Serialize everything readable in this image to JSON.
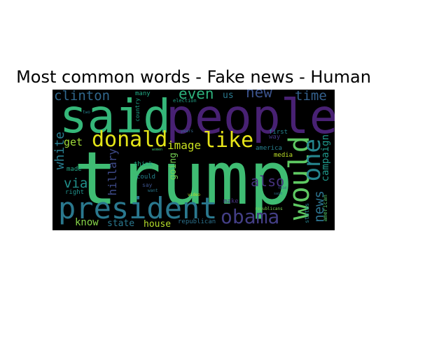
{
  "title": "Most common words - Fake news - Human",
  "words": [
    {
      "text": "trump",
      "color": "#3fbc73"
    },
    {
      "text": "said",
      "color": "#35b779"
    },
    {
      "text": "people",
      "color": "#482173"
    },
    {
      "text": "president",
      "color": "#2a788e"
    },
    {
      "text": "would",
      "color": "#5ec962"
    },
    {
      "text": "one",
      "color": "#25858e"
    },
    {
      "text": "donald",
      "color": "#e3e418"
    },
    {
      "text": "like",
      "color": "#e7e419"
    },
    {
      "text": "obama",
      "color": "#433e85"
    },
    {
      "text": "clinton",
      "color": "#31688e"
    },
    {
      "text": "even",
      "color": "#2db27d"
    },
    {
      "text": "new",
      "color": "#3b528b"
    },
    {
      "text": "time",
      "color": "#34618d"
    },
    {
      "text": "image",
      "color": "#c8e020"
    },
    {
      "text": "also",
      "color": "#46327e"
    },
    {
      "text": "news",
      "color": "#2c728e"
    },
    {
      "text": "white",
      "color": "#287c8e"
    },
    {
      "text": "via",
      "color": "#21918c"
    },
    {
      "text": "hillary",
      "color": "#3e4a89"
    },
    {
      "text": "campaign",
      "color": "#1f988b"
    },
    {
      "text": "get",
      "color": "#a0da39"
    },
    {
      "text": "going",
      "color": "#75d054"
    },
    {
      "text": "know",
      "color": "#86d549"
    },
    {
      "text": "state",
      "color": "#2a788e"
    },
    {
      "text": "house",
      "color": "#b5de2b"
    },
    {
      "text": "us",
      "color": "#2a788e"
    },
    {
      "text": "many",
      "color": "#22a884"
    },
    {
      "text": "election",
      "color": "#20a386"
    },
    {
      "text": "two",
      "color": "#277f8e"
    },
    {
      "text": "country",
      "color": "#1fa187"
    },
    {
      "text": "made",
      "color": "#22a785"
    },
    {
      "text": "right",
      "color": "#21918c"
    },
    {
      "text": "think",
      "color": "#22a884"
    },
    {
      "text": "could",
      "color": "#25858e"
    },
    {
      "text": "say",
      "color": "#3b528b"
    },
    {
      "text": "want",
      "color": "#2a788e"
    },
    {
      "text": "women",
      "color": "#44bf70"
    },
    {
      "text": "years",
      "color": "#31688e"
    },
    {
      "text": "first",
      "color": "#26828e"
    },
    {
      "text": "way",
      "color": "#443983"
    },
    {
      "text": "america",
      "color": "#277f8e"
    },
    {
      "text": "media",
      "color": "#bddf26"
    },
    {
      "text": "make",
      "color": "#46337f"
    },
    {
      "text": "video",
      "color": "#b5de2b"
    },
    {
      "text": "republican",
      "color": "#2c728e"
    },
    {
      "text": "republicans",
      "color": "#7ad151"
    },
    {
      "text": "told",
      "color": "#3b528b"
    },
    {
      "text": "said",
      "color": "#2a788e"
    },
    {
      "text": "states",
      "color": "#26828e"
    },
    {
      "text": "american",
      "color": "#52c569"
    }
  ]
}
